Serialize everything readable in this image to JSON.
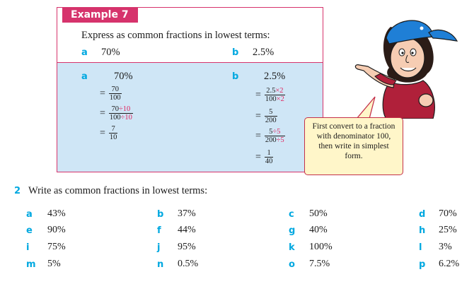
{
  "example": {
    "title": "Example 7",
    "prompt": "Express as common fractions in lowest terms:",
    "parts": [
      {
        "letter": "a",
        "value": "70%"
      },
      {
        "letter": "b",
        "value": "2.5%"
      }
    ],
    "solution_a": {
      "letter": "a",
      "heading": "70%",
      "steps": [
        {
          "eq": "=",
          "num": "70",
          "den": "100"
        },
        {
          "eq": "=",
          "num_black": "70",
          "num_red": "÷10",
          "den_black": "100",
          "den_red": "÷10"
        },
        {
          "eq": "=",
          "num": "7",
          "den": "10"
        }
      ]
    },
    "solution_b": {
      "letter": "b",
      "heading": "2.5%",
      "steps": [
        {
          "eq": "=",
          "num_black": "2.5",
          "num_red": "×2",
          "den_black": "100",
          "den_red": "×2"
        },
        {
          "eq": "=",
          "num": "5",
          "den": "200"
        },
        {
          "eq": "=",
          "num_black": "5",
          "num_red": "÷5",
          "den_black": "200",
          "den_red": "÷5"
        },
        {
          "eq": "=",
          "num": "1",
          "den": "40"
        }
      ]
    }
  },
  "bubble": {
    "text": "First convert to a fraction with denominator 100, then write in simplest form."
  },
  "exercise": {
    "number": "2",
    "prompt": "Write as common fractions in lowest terms:",
    "items": [
      {
        "letter": "a",
        "value": "43%"
      },
      {
        "letter": "b",
        "value": "37%"
      },
      {
        "letter": "c",
        "value": "50%"
      },
      {
        "letter": "d",
        "value": "70%"
      },
      {
        "letter": "e",
        "value": "90%"
      },
      {
        "letter": "f",
        "value": "44%"
      },
      {
        "letter": "g",
        "value": "40%"
      },
      {
        "letter": "h",
        "value": "25%"
      },
      {
        "letter": "i",
        "value": "75%"
      },
      {
        "letter": "j",
        "value": "95%"
      },
      {
        "letter": "k",
        "value": "100%"
      },
      {
        "letter": "l",
        "value": "3%"
      },
      {
        "letter": "m",
        "value": "5%"
      },
      {
        "letter": "n",
        "value": "0.5%"
      },
      {
        "letter": "o",
        "value": "7.5%"
      },
      {
        "letter": "p",
        "value": "6.2%"
      }
    ]
  },
  "colors": {
    "accent": "#d6336c",
    "letter": "#00a8e0",
    "solution_bg": "#cfe6f6",
    "bubble_bg": "#fff6c9"
  }
}
